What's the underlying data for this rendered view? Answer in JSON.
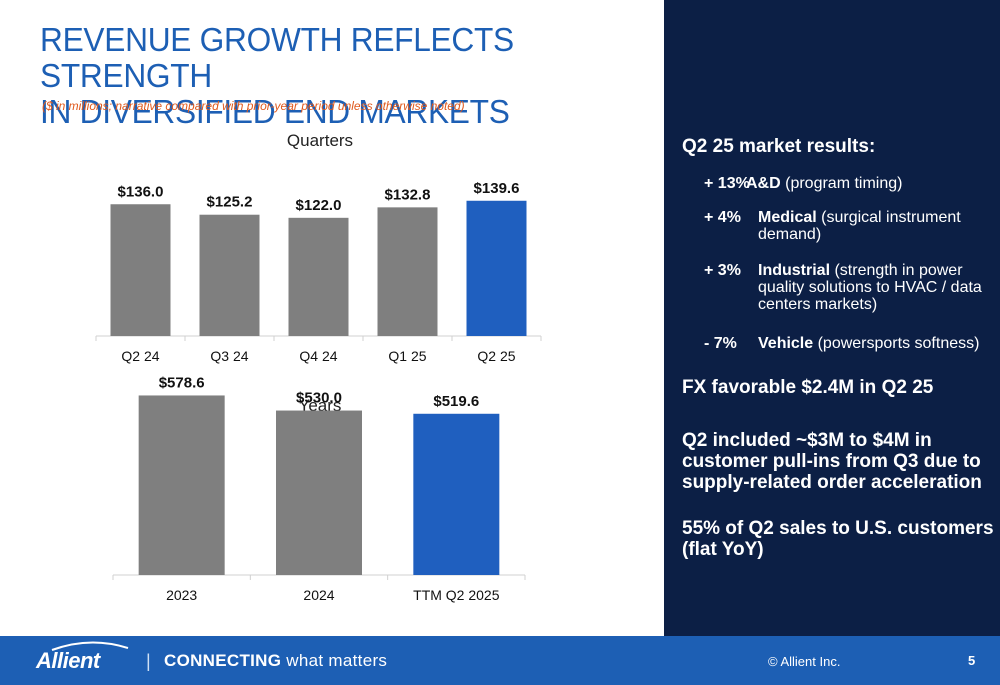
{
  "header": {
    "title_line1": "REVENUE GROWTH REFLECTS STRENGTH",
    "title_line2": "IN DIVERSIFIED END MARKETS",
    "subtitle": "($ in millions; narrative compared with prior-year period unless otherwise noted)"
  },
  "chart_data": [
    {
      "type": "bar",
      "title": "Quarters",
      "categories": [
        "Q2 24",
        "Q3 24",
        "Q4 24",
        "Q1 25",
        "Q2 25"
      ],
      "values": [
        136.0,
        125.2,
        122.0,
        132.8,
        139.6
      ],
      "value_labels": [
        "$136.0",
        "$125.2",
        "$122.0",
        "$132.8",
        "$139.6"
      ],
      "highlight_index": 4,
      "colors": {
        "bar": "#7f7f7f",
        "highlight": "#1f5fbf"
      },
      "ylim": [
        0,
        160
      ],
      "grid": false
    },
    {
      "type": "bar",
      "title": "Years",
      "categories": [
        "2023",
        "2024",
        "TTM Q2 2025"
      ],
      "values": [
        578.6,
        530.0,
        519.6
      ],
      "value_labels": [
        "$578.6",
        "$530.0",
        "$519.6"
      ],
      "highlight_index": 2,
      "colors": {
        "bar": "#7f7f7f",
        "highlight": "#1f5fbf"
      },
      "ylim": [
        0,
        680
      ],
      "grid": false
    }
  ],
  "right_panel": {
    "heading": "Q2 25 market results:",
    "items": [
      {
        "pct": "+ 13%",
        "bold": "A&D",
        "rest": " (program timing)"
      },
      {
        "pct": "+ 4%",
        "bold": "Medical",
        "rest": " (surgical instrument demand)"
      },
      {
        "pct": "+ 3%",
        "bold": "Industrial",
        "rest": " (strength in power quality solutions to HVAC / data centers markets)"
      },
      {
        "pct": "- 7%",
        "bold": "Vehicle",
        "rest": " (powersports softness)"
      }
    ],
    "fx": "FX favorable $2.4M in Q2 25",
    "pullins": "Q2 included ~$3M to $4M in customer pull-ins from Q3 due to supply-related order acceleration",
    "us_sales": "55% of Q2 sales to U.S. customers (flat YoY)"
  },
  "footer": {
    "logo": "Allient",
    "divider": "|",
    "tagline_strong": "CONNECTING",
    "tagline_rest": " what matters",
    "copyright": "© Allient Inc.",
    "page_number": "5"
  },
  "colors": {
    "title_blue": "#1d5fb4",
    "subtitle_orange": "#e05a1e",
    "panel_navy": "#0c1f45",
    "footer_blue": "#1d5fb4"
  }
}
